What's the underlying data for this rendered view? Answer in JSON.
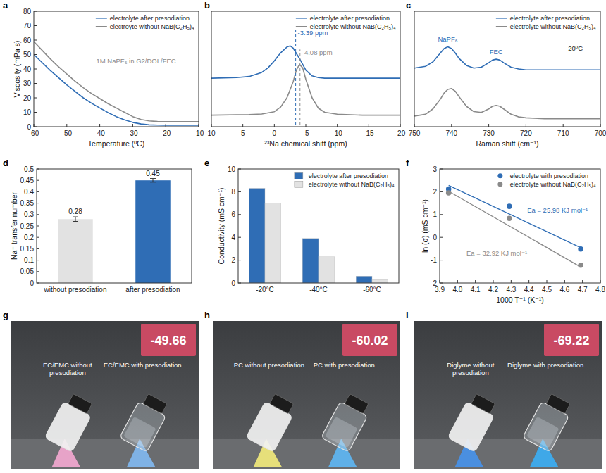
{
  "chart_data": [
    {
      "panel_label": "a",
      "type": "line",
      "x_label": "Temperature (ºC)",
      "y_label": "Viscosity (mPa s)",
      "x": [
        -60,
        -57.5,
        -55,
        -52.5,
        -50,
        -47.5,
        -45,
        -42.5,
        -40,
        -37.5,
        -35,
        -32.5,
        -30,
        -27.5,
        -25,
        -22.5,
        -20,
        -17.5,
        -15,
        -12.5,
        -10
      ],
      "series": [
        {
          "name": "electrolyte after presodiation",
          "color": "#2f6db5",
          "values": [
            50,
            44.5,
            39,
            34,
            29,
            24.5,
            20,
            16.3,
            13,
            9.8,
            7,
            4.8,
            3,
            1.9,
            1.3,
            1.1,
            1,
            1,
            1,
            1,
            1
          ]
        },
        {
          "name": "electroyte without NaB(C₂H₅)₄",
          "color": "#8a8a8a",
          "values": [
            59,
            53,
            47,
            41.5,
            36.5,
            31.5,
            27,
            23,
            19.5,
            16,
            13,
            10,
            7,
            5,
            4,
            3.6,
            3.5,
            3.5,
            3.5,
            3.5,
            3.5
          ]
        }
      ],
      "xlim": [
        -60,
        -10
      ],
      "xticks": [
        -60,
        -50,
        -40,
        -30,
        -20,
        -10
      ],
      "ylim": [
        0,
        80
      ],
      "yticks": [
        0,
        10,
        20,
        30,
        40,
        50,
        60,
        70,
        80
      ],
      "legend": "upper right",
      "annotations": [
        {
          "text": "1M NaPF₆ in G2/DOL/FEC",
          "x": -29,
          "y": 44,
          "color": "#8a8a8a"
        }
      ]
    },
    {
      "panel_label": "b",
      "type": "line",
      "x_label": "²³Na chemical shift (ppm)",
      "tick_labels": "x",
      "series": [
        {
          "name": "electrolyte after presodiation",
          "color": "#2f6db5",
          "x": [
            10,
            6,
            4,
            2,
            1,
            0,
            -1,
            -2,
            -2.5,
            -3,
            -4,
            -5,
            -6,
            -7,
            -8,
            -10,
            -14,
            -20
          ],
          "values": [
            4.2,
            4.25,
            4.35,
            4.7,
            5.1,
            5.7,
            6.4,
            6.9,
            7.0,
            6.8,
            5.9,
            4.9,
            4.4,
            4.25,
            4.2,
            4.2,
            4.2,
            4.2
          ]
        },
        {
          "name": "electrolyte without NaB(C₂H₅)₄",
          "color": "#8a8a8a",
          "x": [
            10,
            4,
            2,
            0,
            -1,
            -2,
            -3,
            -3.5,
            -4,
            -4.5,
            -5,
            -6,
            -7,
            -8,
            -10,
            -14,
            -20
          ],
          "values": [
            1,
            1.05,
            1.1,
            1.3,
            1.7,
            2.5,
            3.9,
            4.9,
            5.4,
            5.1,
            4.1,
            2.5,
            1.6,
            1.25,
            1.08,
            1,
            1
          ]
        }
      ],
      "xlim": [
        10,
        -20
      ],
      "xticks": [
        10,
        5,
        0,
        -5,
        -10,
        -15,
        -20
      ],
      "ylim": [
        0,
        10
      ],
      "legend": "upper right",
      "markers": [
        {
          "value": -3.39,
          "label": "-3.39 ppm",
          "y": 7.9,
          "color": "#2f6db5"
        },
        {
          "value": -4.08,
          "label": "-4.08 ppm",
          "y": 6.2,
          "color": "#8a8a8a"
        }
      ]
    },
    {
      "panel_label": "c",
      "type": "line",
      "x_label": "Raman shift (cm⁻¹)",
      "tick_labels": "x",
      "x": [
        750,
        747,
        745,
        743,
        742,
        741,
        740,
        739,
        738,
        736,
        734,
        732,
        730,
        729,
        728,
        727,
        726,
        724,
        722,
        720,
        715,
        710,
        705,
        700
      ],
      "series": [
        {
          "name": "electrolyte after presodiation",
          "color": "#2f6db5",
          "values": [
            6.6,
            6.8,
            7.3,
            8.3,
            8.8,
            9.0,
            8.8,
            8.3,
            7.7,
            6.9,
            6.6,
            6.7,
            7.2,
            7.5,
            7.6,
            7.5,
            7.2,
            6.7,
            6.5,
            6.4,
            6.4,
            6.4,
            6.4,
            6.4
          ]
        },
        {
          "name": "electrolyte without NaB(C₂H₅)₄",
          "color": "#8a8a8a",
          "values": [
            1.2,
            1.4,
            2.0,
            3.1,
            3.8,
            4.2,
            4.3,
            4.0,
            3.4,
            2.3,
            1.7,
            1.6,
            2.0,
            2.3,
            2.4,
            2.3,
            2.0,
            1.4,
            1.1,
            1.0,
            0.9,
            0.9,
            0.9,
            0.9
          ]
        }
      ],
      "xlim": [
        750,
        700
      ],
      "xticks": [
        750,
        740,
        730,
        720,
        710,
        700
      ],
      "ylim": [
        0,
        13
      ],
      "legend": "upper right",
      "annotations": [
        {
          "text": "NaPF₆",
          "x": 741,
          "y": 9.6,
          "color": "#2f6db5"
        },
        {
          "text": "FEC",
          "x": 728,
          "y": 8.2,
          "color": "#2f6db5"
        },
        {
          "text": "-20ºC",
          "x": 707,
          "y": 8.6,
          "color": "#222222"
        }
      ]
    },
    {
      "panel_label": "d",
      "type": "bar",
      "y_label": "Na⁺ transfer number",
      "categories": [
        "without presodiation",
        "after presodiation"
      ],
      "values": [
        0.28,
        0.45
      ],
      "errors": [
        0.01,
        0.008
      ],
      "colors": [
        "#e2e2e2",
        "#2f6db5"
      ],
      "ylim": [
        0,
        0.5
      ],
      "yticks": [
        0,
        0.05,
        0.1,
        0.15,
        0.2,
        0.25,
        0.3,
        0.35,
        0.4,
        0.45,
        0.5
      ],
      "data_labels": true
    },
    {
      "panel_label": "e",
      "type": "bar",
      "y_label": "Conductivity (mS cm⁻¹)",
      "categories": [
        "-20°C",
        "-40°C",
        "-60°C"
      ],
      "series": [
        {
          "name": "electrolyte after presodiation",
          "color": "#2f6db5",
          "values": [
            8.3,
            3.9,
            0.6
          ]
        },
        {
          "name": "electrolyte without NaB(C₂H₅)₄",
          "color": "#e2e2e2",
          "values": [
            7.0,
            2.3,
            0.3
          ]
        }
      ],
      "ylim": [
        0,
        10
      ],
      "yticks": [
        0,
        2,
        4,
        6,
        8,
        10
      ],
      "legend": "upper right"
    },
    {
      "panel_label": "f",
      "type": "scatter",
      "x_label": "1000 T⁻¹ (K⁻¹)",
      "y_label": "ln (σ) (mS cm⁻¹)",
      "marker": "circle",
      "series": [
        {
          "name": "electrolyte with presodiation",
          "color": "#2f6db5",
          "x": [
            3.95,
            4.29,
            4.69
          ],
          "values": [
            2.12,
            1.36,
            -0.51
          ],
          "fit_x": [
            3.95,
            4.69
          ],
          "fit_y": [
            2.28,
            -0.45
          ]
        },
        {
          "name": "electrolyte without NaB(C₂H₅)₄",
          "color": "#8a8a8a",
          "x": [
            3.95,
            4.29,
            4.69
          ],
          "values": [
            1.95,
            0.83,
            -1.22
          ],
          "fit_x": [
            3.95,
            4.69
          ],
          "fit_y": [
            2.02,
            -1.3
          ]
        }
      ],
      "xlim": [
        3.9,
        4.8
      ],
      "xticks": [
        3.9,
        {
          "value": 4,
          "label": "4.0"
        },
        4.1,
        4.2,
        4.3,
        4.4,
        4.5,
        4.6,
        4.7,
        4.8
      ],
      "ylim": [
        -2,
        3
      ],
      "yticks": [
        -2,
        -1,
        0,
        1,
        2,
        3
      ],
      "legend": "upper right",
      "annotations": [
        {
          "text": "Ea = 25.98 KJ mol⁻¹",
          "x": 4.56,
          "y": 1.1,
          "color": "#2f6db5"
        },
        {
          "text": "Ea = 32.92 KJ mol⁻¹",
          "x": 4.22,
          "y": -0.8,
          "color": "#8a8a8a"
        }
      ]
    }
  ],
  "photos": [
    {
      "panel_label": "g",
      "left_label": "EC/EMC without presodiation",
      "right_label": "EC/EMC with presodiation",
      "temperature": -49.66,
      "clip_colors": [
        "#e7a3c8",
        "#7fb2e5"
      ]
    },
    {
      "panel_label": "h",
      "left_label": "PC without presodiation",
      "right_label": "PC with presodiation",
      "temperature": -60.02,
      "clip_colors": [
        "#e6df7a",
        "#5fb0e8"
      ]
    },
    {
      "panel_label": "i",
      "left_label": "Diglyme without presodiation",
      "right_label": "Diglyme with presodiation",
      "temperature": -69.22,
      "clip_colors": [
        "#4a8fe0",
        "#3fa8e8"
      ]
    }
  ]
}
